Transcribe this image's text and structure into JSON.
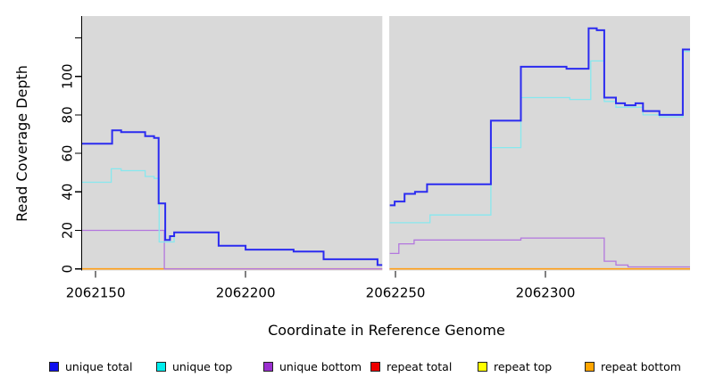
{
  "figure": {
    "background": "#ffffff",
    "panel_background": "#d9d9d9",
    "axis_color": "#000000"
  },
  "chart_data": {
    "type": "line",
    "subtype": "step",
    "title": "",
    "xlabel": "Coordinate in Reference Genome",
    "ylabel": "Read Coverage Depth",
    "xlim": [
      2062145.5,
      2062348.2
    ],
    "ylim": [
      0,
      131
    ],
    "grid": "off",
    "legend_position": "bottom",
    "x_ticks": [
      2062150,
      2062200,
      2062250,
      2062300
    ],
    "x_tick_labels": [
      "2062150",
      "2062200",
      "2062250",
      "2062300"
    ],
    "y_ticks": [
      0,
      20,
      40,
      60,
      80,
      100,
      120
    ],
    "y_tick_labels": [
      "0",
      "20",
      "40",
      "60",
      "80",
      "100",
      ""
    ],
    "gap": {
      "x_start": 2062245.6,
      "x_end": 2062247.9,
      "color": "#ffffff"
    },
    "series": [
      {
        "name": "repeat top",
        "color": "#ffff00",
        "width": 1.2,
        "segments": [
          {
            "end": 2062245.6,
            "steps": [
              [
                2062145.5,
                0
              ]
            ]
          },
          {
            "end": 2062348.2,
            "steps": [
              [
                2062248.1,
                0
              ]
            ]
          }
        ]
      },
      {
        "name": "repeat total",
        "color": "#ee0000",
        "width": 1.2,
        "segments": [
          {
            "end": 2062245.6,
            "steps": [
              [
                2062145.5,
                0
              ]
            ]
          },
          {
            "end": 2062348.2,
            "steps": [
              [
                2062248.1,
                0
              ]
            ]
          }
        ]
      },
      {
        "name": "repeat bottom",
        "color": "#ff9e16",
        "width": 1.6,
        "segments": [
          {
            "end": 2062245.6,
            "steps": [
              [
                2062145.5,
                0
              ]
            ]
          },
          {
            "end": 2062348.2,
            "steps": [
              [
                2062248.1,
                0
              ]
            ]
          }
        ]
      },
      {
        "name": "unique bottom",
        "color": "#b377de",
        "width": 1.3,
        "segments": [
          {
            "end": 2062245.6,
            "steps": [
              [
                2062145.5,
                20
              ],
              [
                2062172.9,
                0
              ]
            ]
          },
          {
            "end": 2062348.2,
            "steps": [
              [
                2062248.1,
                8
              ],
              [
                2062251.1,
                13
              ],
              [
                2062256.2,
                15
              ],
              [
                2062291.8,
                16
              ],
              [
                2062319.6,
                4
              ],
              [
                2062323.5,
                2
              ],
              [
                2062327.5,
                1
              ]
            ]
          }
        ]
      },
      {
        "name": "unique top",
        "color": "#87e8ee",
        "width": 1.3,
        "segments": [
          {
            "end": 2062245.6,
            "steps": [
              [
                2062145.5,
                45
              ],
              [
                2062155.2,
                52
              ],
              [
                2062158.5,
                51
              ],
              [
                2062166.5,
                48
              ],
              [
                2062169.5,
                47
              ],
              [
                2062171.2,
                14
              ],
              [
                2062176.2,
                19
              ],
              [
                2062191,
                12
              ],
              [
                2062200,
                10
              ],
              [
                2062216,
                9
              ],
              [
                2062226,
                5
              ],
              [
                2062244,
                2
              ]
            ]
          },
          {
            "end": 2062348.2,
            "steps": [
              [
                2062248.1,
                24
              ],
              [
                2062261.5,
                28
              ],
              [
                2062281.8,
                63
              ],
              [
                2062291.8,
                89
              ],
              [
                2062308.1,
                88
              ],
              [
                2062315.1,
                108
              ],
              [
                2062319.6,
                87
              ],
              [
                2062323.5,
                84
              ],
              [
                2062332.5,
                80
              ],
              [
                2062338,
                79
              ],
              [
                2062345.8,
                113
              ]
            ]
          }
        ]
      },
      {
        "name": "unique total",
        "color": "#2b2bf0",
        "width": 2,
        "segments": [
          {
            "end": 2062245.6,
            "steps": [
              [
                2062145.5,
                65
              ],
              [
                2062155.5,
                72
              ],
              [
                2062158.5,
                71
              ],
              [
                2062166.5,
                69
              ],
              [
                2062169.5,
                68
              ],
              [
                2062171,
                34
              ],
              [
                2062173.2,
                15
              ],
              [
                2062174.8,
                17
              ],
              [
                2062176.2,
                19
              ],
              [
                2062191,
                12
              ],
              [
                2062200,
                10
              ],
              [
                2062216,
                9
              ],
              [
                2062226,
                5
              ],
              [
                2062244,
                2
              ]
            ]
          },
          {
            "end": 2062348.2,
            "steps": [
              [
                2062248.1,
                33
              ],
              [
                2062249.7,
                35
              ],
              [
                2062253,
                39
              ],
              [
                2062256.5,
                40
              ],
              [
                2062260.5,
                44
              ],
              [
                2062281.8,
                77
              ],
              [
                2062291.8,
                105
              ],
              [
                2062307,
                104
              ],
              [
                2062314.4,
                125
              ],
              [
                2062317.1,
                124
              ],
              [
                2062319.6,
                89
              ],
              [
                2062323.5,
                86
              ],
              [
                2062326.5,
                85
              ],
              [
                2062330,
                86
              ],
              [
                2062332.5,
                82
              ],
              [
                2062338,
                80
              ],
              [
                2062345.8,
                114
              ]
            ]
          }
        ]
      }
    ]
  },
  "legend": {
    "items": [
      {
        "label": "unique total",
        "color": "#0f0fee"
      },
      {
        "label": "unique top",
        "color": "#00eded"
      },
      {
        "label": "unique bottom",
        "color": "#9b30d0"
      },
      {
        "label": "repeat total",
        "color": "#ee0000"
      },
      {
        "label": "repeat top",
        "color": "#ffff00"
      },
      {
        "label": "repeat bottom",
        "color": "#ffa500"
      }
    ]
  }
}
